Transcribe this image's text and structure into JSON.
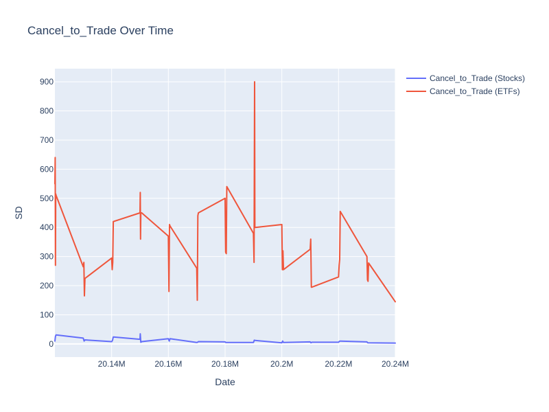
{
  "chart_data": {
    "type": "line",
    "title": "Cancel_to_Trade Over Time",
    "xlabel": "Date",
    "ylabel": "SD",
    "xlim": [
      20120000,
      20240000
    ],
    "ylim": [
      -45,
      945
    ],
    "x_ticks": [
      {
        "value": 20140000,
        "label": "20.14M"
      },
      {
        "value": 20160000,
        "label": "20.16M"
      },
      {
        "value": 20180000,
        "label": "20.18M"
      },
      {
        "value": 20200000,
        "label": "20.2M"
      },
      {
        "value": 20220000,
        "label": "20.22M"
      },
      {
        "value": 20240000,
        "label": "20.24M"
      }
    ],
    "y_ticks": [
      0,
      100,
      200,
      300,
      400,
      500,
      600,
      700,
      800,
      900
    ],
    "grid": true,
    "legend_position": "top-right",
    "series": [
      {
        "name": "Cancel_to_Trade (Stocks)",
        "color": "#636efa",
        "x": [
          20120000,
          20120200,
          20120400,
          20130000,
          20130300,
          20130600,
          20140000,
          20140300,
          20140600,
          20150000,
          20150100,
          20150300,
          20150600,
          20160000,
          20160300,
          20160600,
          20170000,
          20170300,
          20170600,
          20180000,
          20180300,
          20180600,
          20190000,
          20190300,
          20190600,
          20200000,
          20200300,
          20200600,
          20210000,
          20210300,
          20210600,
          20220000,
          20220300,
          20220600,
          20230000,
          20230300,
          20240000
        ],
        "y": [
          10,
          26,
          31,
          20,
          10,
          14,
          8,
          12,
          24,
          16,
          35,
          6,
          8,
          18,
          10,
          18,
          5,
          6,
          8,
          7,
          5,
          5,
          5,
          13,
          12,
          4,
          10,
          5,
          7,
          4,
          6,
          6,
          9,
          10,
          7,
          4,
          3
        ]
      },
      {
        "name": "Cancel_to_Trade (ETFs)",
        "color": "#ef553b",
        "x": [
          20120000,
          20120100,
          20120200,
          20120300,
          20120400,
          20130000,
          20130200,
          20130400,
          20130600,
          20140000,
          20140200,
          20140400,
          20140600,
          20150000,
          20150100,
          20150200,
          20150300,
          20150600,
          20160000,
          20160200,
          20160400,
          20160600,
          20170000,
          20170200,
          20170400,
          20170600,
          20180000,
          20180200,
          20180400,
          20180600,
          20190000,
          20190200,
          20190400,
          20190500,
          20190700,
          20200000,
          20200200,
          20200400,
          20200600,
          20210000,
          20210200,
          20210400,
          20210600,
          20220000,
          20220200,
          20220400,
          20220600,
          20230000,
          20230200,
          20230400,
          20230600,
          20240000
        ],
        "y": [
          550,
          640,
          270,
          515,
          510,
          265,
          280,
          165,
          225,
          295,
          255,
          280,
          420,
          450,
          520,
          360,
          450,
          450,
          370,
          180,
          410,
          405,
          260,
          150,
          440,
          450,
          500,
          315,
          310,
          540,
          380,
          280,
          900,
          400,
          400,
          410,
          255,
          320,
          255,
          325,
          360,
          195,
          195,
          230,
          270,
          290,
          455,
          300,
          220,
          215,
          278,
          145
        ]
      }
    ]
  }
}
